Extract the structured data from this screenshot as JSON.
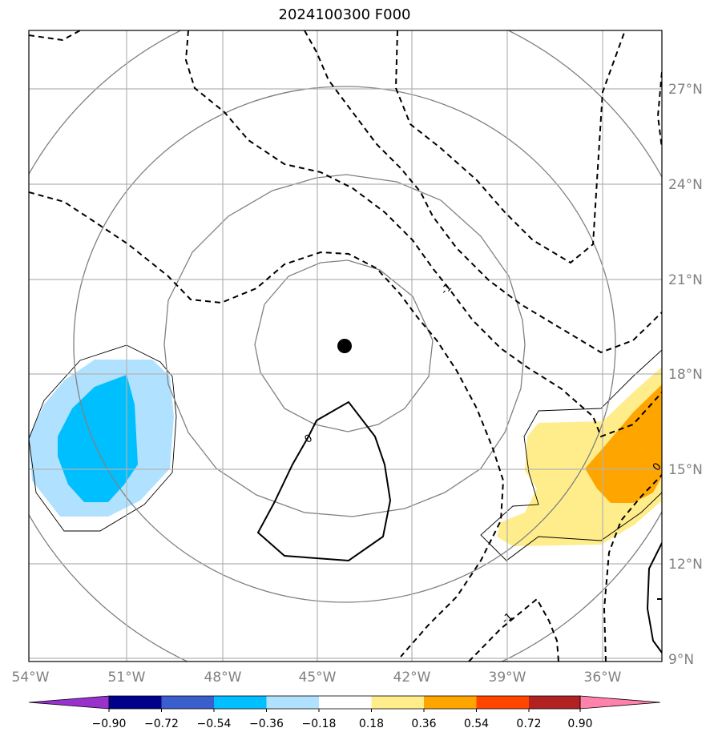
{
  "title": "2024100300 F000",
  "map": {
    "lon_labels": [
      "54°W",
      "51°W",
      "48°W",
      "45°W",
      "42°W",
      "39°W",
      "36°W"
    ],
    "lat_labels": [
      "27°N",
      "24°N",
      "21°N",
      "18°N",
      "15°N",
      "12°N",
      "9°N"
    ],
    "extent": {
      "lon": [
        -54,
        -34.5
      ],
      "lat": [
        8.9,
        28.9
      ]
    },
    "center_marker": {
      "lon": -44.1,
      "lat": 18.9
    },
    "contour_labels": [
      "0",
      "-1",
      "-1",
      "0"
    ]
  },
  "colorbar": {
    "ticks": [
      "−0.90",
      "−0.72",
      "−0.54",
      "−0.36",
      "−0.18",
      "0.18",
      "0.36",
      "0.54",
      "0.72",
      "0.90"
    ],
    "colors": [
      "#9932cc",
      "#00008b",
      "#3a5fcd",
      "#00bfff",
      "#b0e2ff",
      "#ffffff",
      "#ffec8b",
      "#ffa500",
      "#ff4500",
      "#b22222",
      "#ff82ab"
    ]
  }
}
